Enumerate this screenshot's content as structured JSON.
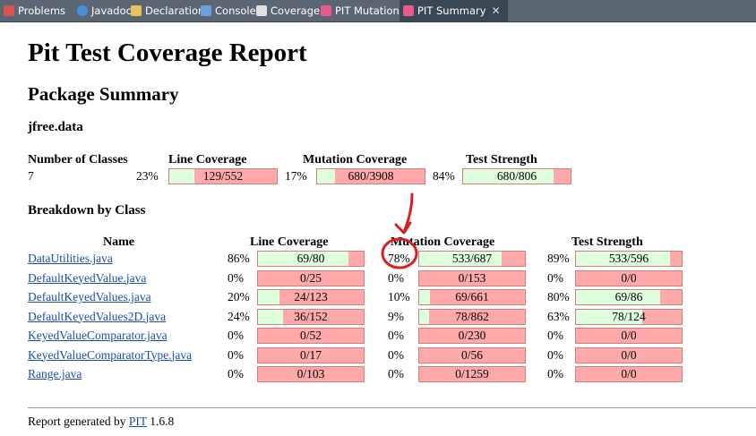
{
  "tabs": [
    {
      "label": "Problems",
      "icon": "problems-icon",
      "color": "#d9534f"
    },
    {
      "label": "Javadoc",
      "icon": "javadoc-icon",
      "color": "#4a90d9"
    },
    {
      "label": "Declaration",
      "icon": "declaration-icon",
      "color": "#e8c25a"
    },
    {
      "label": "Console",
      "icon": "console-icon",
      "color": "#6aa0e0"
    },
    {
      "label": "Coverage",
      "icon": "coverage-icon",
      "color": "#e0e0e0"
    },
    {
      "label": "PIT Mutations",
      "icon": "pit-icon",
      "color": "#e85a8a"
    },
    {
      "label": "PIT Summary",
      "icon": "pit-icon",
      "color": "#e85a8a",
      "close": "✕"
    }
  ],
  "report": {
    "title": "Pit Test Coverage Report",
    "package_summary": "Package Summary",
    "package_name": "jfree.data",
    "summary_headers": {
      "classes": "Number of Classes",
      "line": "Line Coverage",
      "mutation": "Mutation Coverage",
      "strength": "Test Strength"
    },
    "summary": {
      "classes": "7",
      "line_pct": "23%",
      "line_val": "129/552",
      "line_frac": 0.23,
      "mut_pct": "17%",
      "mut_val": "680/3908",
      "mut_frac": 0.17,
      "str_pct": "84%",
      "str_val": "680/806",
      "str_frac": 0.84
    },
    "breakdown": "Breakdown by Class",
    "class_headers": {
      "name": "Name",
      "line": "Line Coverage",
      "mutation": "Mutation Coverage",
      "strength": "Test Strength"
    },
    "classes": [
      {
        "name": "DataUtilities.java",
        "line_pct": "86%",
        "line_val": "69/80",
        "line_frac": 0.86,
        "mut_pct": "78%",
        "mut_val": "533/687",
        "mut_frac": 0.78,
        "str_pct": "89%",
        "str_val": "533/596",
        "str_frac": 0.89
      },
      {
        "name": "DefaultKeyedValue.java",
        "line_pct": "0%",
        "line_val": "0/25",
        "line_frac": 0,
        "mut_pct": "0%",
        "mut_val": "0/153",
        "mut_frac": 0,
        "str_pct": "0%",
        "str_val": "0/0",
        "str_frac": 0
      },
      {
        "name": "DefaultKeyedValues.java",
        "line_pct": "20%",
        "line_val": "24/123",
        "line_frac": 0.2,
        "mut_pct": "10%",
        "mut_val": "69/661",
        "mut_frac": 0.1,
        "str_pct": "80%",
        "str_val": "69/86",
        "str_frac": 0.8
      },
      {
        "name": "DefaultKeyedValues2D.java",
        "line_pct": "24%",
        "line_val": "36/152",
        "line_frac": 0.24,
        "mut_pct": "9%",
        "mut_val": "78/862",
        "mut_frac": 0.09,
        "str_pct": "63%",
        "str_val": "78/124",
        "str_frac": 0.63
      },
      {
        "name": "KeyedValueComparator.java",
        "line_pct": "0%",
        "line_val": "0/52",
        "line_frac": 0,
        "mut_pct": "0%",
        "mut_val": "0/230",
        "mut_frac": 0,
        "str_pct": "0%",
        "str_val": "0/0",
        "str_frac": 0
      },
      {
        "name": "KeyedValueComparatorType.java",
        "line_pct": "0%",
        "line_val": "0/17",
        "line_frac": 0,
        "mut_pct": "0%",
        "mut_val": "0/56",
        "mut_frac": 0,
        "str_pct": "0%",
        "str_val": "0/0",
        "str_frac": 0
      },
      {
        "name": "Range.java",
        "line_pct": "0%",
        "line_val": "0/103",
        "line_frac": 0,
        "mut_pct": "0%",
        "mut_val": "0/1259",
        "mut_frac": 0,
        "str_pct": "0%",
        "str_val": "0/0",
        "str_frac": 0
      }
    ],
    "footer_prefix": "Report generated by",
    "footer_link": "PIT",
    "footer_version": "1.6.8"
  },
  "annotation": {
    "color": "#d92020"
  }
}
